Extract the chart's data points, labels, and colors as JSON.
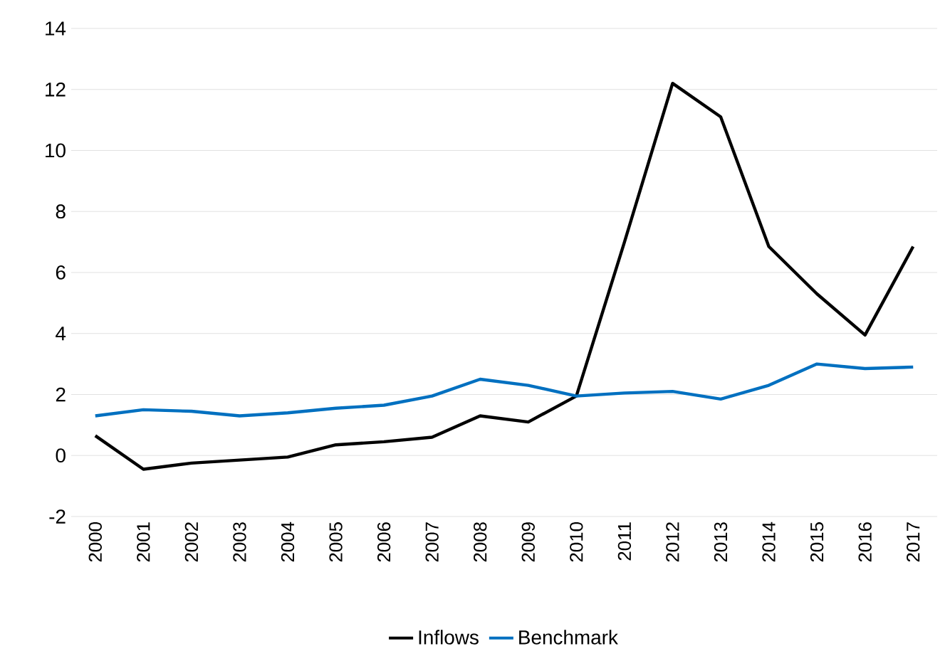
{
  "chart_data": {
    "type": "line",
    "categories": [
      "2000",
      "2001",
      "2002",
      "2003",
      "2004",
      "2005",
      "2006",
      "2007",
      "2008",
      "2009",
      "2010",
      "2011",
      "2012",
      "2013",
      "2014",
      "2015",
      "2016",
      "2017"
    ],
    "series": [
      {
        "name": "Inflows",
        "color": "#000000",
        "values": [
          0.65,
          -0.45,
          -0.25,
          -0.15,
          -0.05,
          0.35,
          0.45,
          0.6,
          1.3,
          1.1,
          1.95,
          7.0,
          12.2,
          11.1,
          6.85,
          5.3,
          3.95,
          6.85
        ]
      },
      {
        "name": "Benchmark",
        "color": "#0070c0",
        "values": [
          1.3,
          1.5,
          1.45,
          1.3,
          1.4,
          1.55,
          1.65,
          1.95,
          2.5,
          2.3,
          1.95,
          2.05,
          2.1,
          1.85,
          2.3,
          3.0,
          2.85,
          2.9
        ]
      }
    ],
    "ylim": [
      -2,
      14
    ],
    "yticks": [
      -2,
      0,
      2,
      4,
      6,
      8,
      10,
      12,
      14
    ],
    "grid": "y",
    "legend": "bottom",
    "marker": "none",
    "line_style": "solid"
  }
}
